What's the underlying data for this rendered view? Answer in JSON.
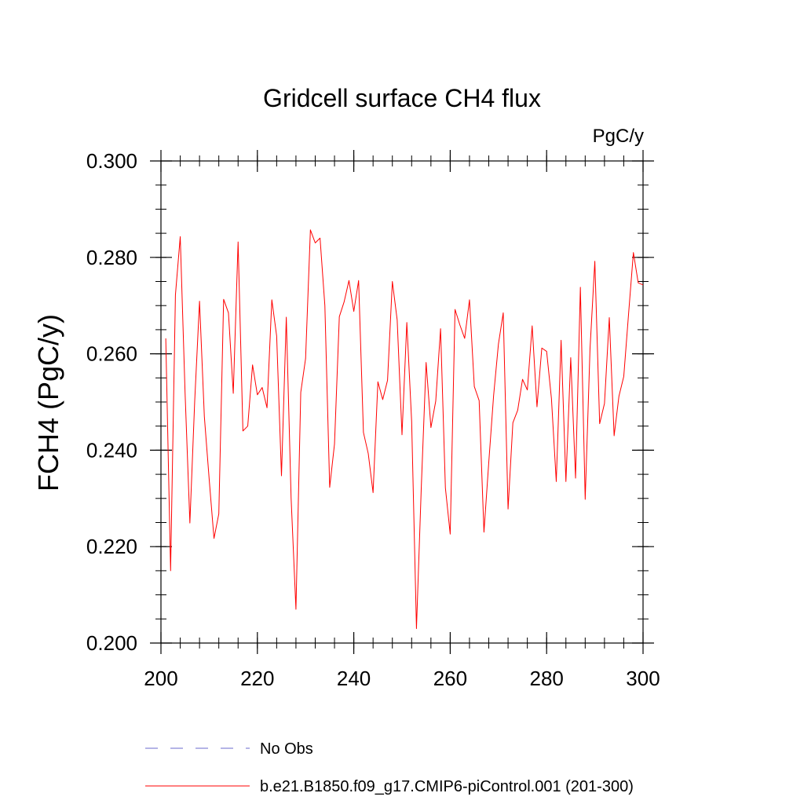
{
  "chart_data": {
    "type": "line",
    "title": "Gridcell surface CH4 flux",
    "units_label": "PgC/y",
    "xlabel": "",
    "ylabel": "FCH4  (PgC/y)",
    "xlim": [
      200,
      300
    ],
    "ylim": [
      0.2,
      0.3
    ],
    "x_ticks": [
      200,
      220,
      240,
      260,
      280,
      300
    ],
    "x_tick_labels": [
      "200",
      "220",
      "240",
      "260",
      "280",
      "300"
    ],
    "y_ticks": [
      0.2,
      0.22,
      0.24,
      0.26,
      0.28,
      0.3
    ],
    "y_tick_labels": [
      "0.200",
      "0.220",
      "0.240",
      "0.260",
      "0.280",
      "0.300"
    ],
    "grid": false,
    "series": [
      {
        "name": "b.e21.B1850.f09_g17.CMIP6-piControl.001 (201-300)",
        "color": "#ff0000",
        "style": "solid",
        "x": [
          201,
          202,
          203,
          204,
          205,
          206,
          207,
          208,
          209,
          210,
          211,
          212,
          213,
          214,
          215,
          216,
          217,
          218,
          219,
          220,
          221,
          222,
          223,
          224,
          225,
          226,
          227,
          228,
          229,
          230,
          231,
          232,
          233,
          234,
          235,
          236,
          237,
          238,
          239,
          240,
          241,
          242,
          243,
          244,
          245,
          246,
          247,
          248,
          249,
          250,
          251,
          252,
          253,
          254,
          255,
          256,
          257,
          258,
          259,
          260,
          261,
          262,
          263,
          264,
          265,
          266,
          267,
          268,
          269,
          270,
          271,
          272,
          273,
          274,
          275,
          276,
          277,
          278,
          279,
          280,
          281,
          282,
          283,
          284,
          285,
          286,
          287,
          288,
          289,
          290,
          291,
          292,
          293,
          294,
          295,
          296,
          297,
          298,
          299,
          300
        ],
        "values": [
          0.2632,
          0.215,
          0.2722,
          0.2843,
          0.252,
          0.2249,
          0.2502,
          0.2709,
          0.247,
          0.234,
          0.2217,
          0.2268,
          0.2713,
          0.2685,
          0.2518,
          0.2832,
          0.244,
          0.245,
          0.2577,
          0.2515,
          0.253,
          0.2488,
          0.2712,
          0.2637,
          0.2347,
          0.2676,
          0.23,
          0.207,
          0.252,
          0.259,
          0.2857,
          0.283,
          0.284,
          0.27,
          0.2323,
          0.2413,
          0.2677,
          0.2708,
          0.2752,
          0.2688,
          0.2752,
          0.2437,
          0.2393,
          0.2312,
          0.2542,
          0.2505,
          0.2545,
          0.275,
          0.267,
          0.2432,
          0.2665,
          0.246,
          0.203,
          0.2323,
          0.2582,
          0.2447,
          0.2502,
          0.2652,
          0.2322,
          0.2226,
          0.2692,
          0.266,
          0.2632,
          0.2712,
          0.2532,
          0.2503,
          0.223,
          0.2375,
          0.2513,
          0.262,
          0.2685,
          0.2278,
          0.2457,
          0.2483,
          0.2547,
          0.2525,
          0.2658,
          0.249,
          0.2612,
          0.2605,
          0.2507,
          0.2335,
          0.2628,
          0.2335,
          0.2592,
          0.2342,
          0.2738,
          0.2298,
          0.261,
          0.2792,
          0.2455,
          0.2497,
          0.2675,
          0.243,
          0.2512,
          0.2553,
          0.2683,
          0.281,
          0.2747,
          0.2743
        ]
      }
    ],
    "legend": {
      "placement": "bottom-left",
      "entries": [
        {
          "label": "No Obs",
          "color": "#6a6acc",
          "style": "dashed"
        },
        {
          "label": "b.e21.B1850.f09_g17.CMIP6-piControl.001 (201-300)",
          "color": "#ff0000",
          "style": "solid"
        }
      ]
    }
  }
}
